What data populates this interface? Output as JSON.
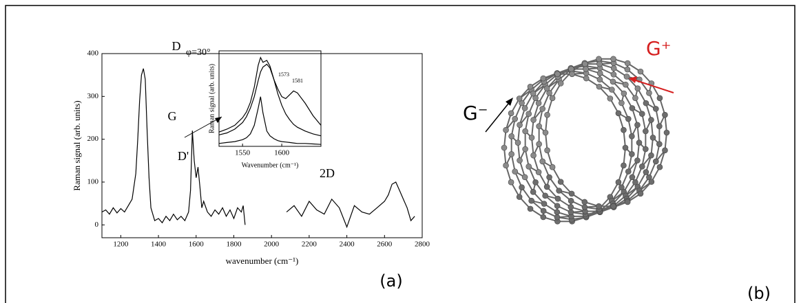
{
  "chart_data": [
    {
      "type": "line",
      "color": "#000000",
      "x_label": "wavenumber (cm⁻¹)",
      "y_label": "Raman signal (arb. units)",
      "annotations": [
        "D",
        "G",
        "D'",
        "2D"
      ],
      "panel_label": "(a)",
      "xlim": [
        1100,
        2800
      ],
      "ylim": [
        -30,
        400
      ],
      "xticks": [
        1200,
        1400,
        1600,
        1800,
        2000,
        2200,
        2400,
        2600,
        2800
      ],
      "yticks": [
        0,
        100,
        200,
        300,
        400
      ],
      "x": [
        1100,
        1120,
        1140,
        1160,
        1180,
        1200,
        1220,
        1240,
        1260,
        1280,
        1290,
        1300,
        1310,
        1320,
        1330,
        1340,
        1350,
        1360,
        1380,
        1400,
        1420,
        1440,
        1460,
        1480,
        1500,
        1520,
        1540,
        1560,
        1570,
        1580,
        1590,
        1600,
        1610,
        1620,
        1630,
        1640,
        1660,
        1680,
        1700,
        1720,
        1740,
        1760,
        1780,
        1800,
        1820,
        1840,
        1850,
        1860,
        null,
        2080,
        2120,
        2160,
        2200,
        2240,
        2280,
        2320,
        2360,
        2400,
        2440,
        2480,
        2520,
        2560,
        2600,
        2620,
        2640,
        2660,
        2680,
        2700,
        2720,
        2740,
        2760
      ],
      "values": [
        30,
        35,
        25,
        40,
        28,
        38,
        30,
        45,
        60,
        120,
        200,
        290,
        350,
        365,
        340,
        220,
        110,
        40,
        10,
        15,
        5,
        20,
        10,
        25,
        12,
        20,
        10,
        30,
        80,
        220,
        150,
        110,
        135,
        90,
        40,
        55,
        30,
        20,
        35,
        25,
        40,
        20,
        35,
        15,
        40,
        30,
        45,
        0,
        null,
        30,
        45,
        20,
        55,
        35,
        25,
        60,
        40,
        -5,
        45,
        30,
        25,
        40,
        55,
        70,
        95,
        100,
        80,
        60,
        40,
        10,
        20
      ]
    },
    {
      "type": "line",
      "color": "#000000",
      "title": "φ=30°",
      "x_label": "Wavenumber (cm⁻¹)",
      "y_label": "Raman signal (arb. units)",
      "annotations": [
        "1573",
        "1581"
      ],
      "xlim": [
        1520,
        1650
      ],
      "ylim": [
        0,
        10
      ],
      "xticks": [
        1550,
        1600
      ],
      "x": [
        1520,
        1530,
        1540,
        1550,
        1555,
        1560,
        1565,
        1570,
        1573,
        1576,
        1581,
        1585,
        1590,
        1595,
        1600,
        1605,
        1610,
        1615,
        1620,
        1630,
        1640,
        1650
      ],
      "series": [
        {
          "values": [
            1.5,
            1.8,
            2.2,
            3,
            3.6,
            4.6,
            6.2,
            8.5,
            9.3,
            8.8,
            9.0,
            8.4,
            7,
            6,
            5.2,
            5,
            5.4,
            5.8,
            5.6,
            4.5,
            3.2,
            2.2
          ]
        },
        {
          "values": [
            1.2,
            1.4,
            1.8,
            2.5,
            3.1,
            4,
            5.2,
            6.9,
            7.8,
            8.3,
            8.6,
            8.2,
            7,
            5.5,
            4.3,
            3.4,
            2.8,
            2.3,
            2,
            1.6,
            1.3,
            1.1
          ]
        },
        {
          "values": [
            0.3,
            0.4,
            0.5,
            0.7,
            0.9,
            1.3,
            2.2,
            4,
            5.2,
            3.5,
            1.6,
            1.1,
            0.8,
            0.6,
            0.5,
            0.45,
            0.4,
            0.35,
            0.3,
            0.3,
            0.25,
            0.2
          ]
        }
      ]
    }
  ],
  "figure_b": {
    "minus_label": "G⁻",
    "plus_label": "G⁺",
    "panel_label": "(b)"
  }
}
